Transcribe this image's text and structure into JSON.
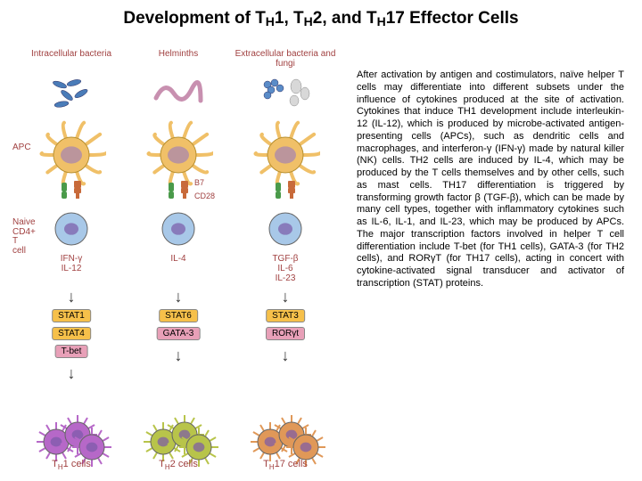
{
  "title_html": "Development of T<sub>H</sub>1, T<sub>H</sub>2, and T<sub>H</sub>17 Effector Cells",
  "description": "After activation by antigen and costimulators, naïve helper T cells may differentiate into different subsets under the influence of cytokines produced at the site of activation. Cytokines that induce TH1 development include interleukin-12 (IL-12), which is produced by microbe-activated antigen-presenting cells (APCs), such as dendritic cells and macrophages, and interferon-γ (IFN-γ) made by natural killer (NK) cells. TH2 cells are induced by IL-4, which may be produced by the T cells themselves and by other cells, such as mast cells. TH17 differentiation is triggered by transforming growth factor β (TGF-β), which can be made by many cell types, together with inflammatory cytokines such as IL-6, IL-1, and IL-23, which may be produced by APCs. The major transcription factors involved in helper T cell differentiation include T-bet (for TH1 cells), GATA-3 (for TH2 cells), and RORγT (for TH17 cells), acting in concert with cytokine-activated signal transducer and activator of transcription (STAT) proteins.",
  "labels": {
    "apc": "APC",
    "naive": "Naive CD4+ T cell",
    "b7": "B7",
    "cd28": "CD28"
  },
  "columns": [
    {
      "pathogen": "Intracellular bacteria",
      "pathogen_color": "#4a7cb8",
      "cytokines": "IFN-γ, IL-12",
      "tfs": [
        {
          "name": "STAT1",
          "bg": "#f6c04a"
        },
        {
          "name": "STAT4",
          "bg": "#f6c04a"
        },
        {
          "name": "T-bet",
          "bg": "#e8a0b8"
        }
      ],
      "effector_color": "#b668c8",
      "effector_label": "TH1 cells"
    },
    {
      "pathogen": "Helminths",
      "pathogen_color": "#c890b0",
      "cytokines": "IL-4",
      "tfs": [
        {
          "name": "STAT6",
          "bg": "#f6c04a"
        },
        {
          "name": "GATA-3",
          "bg": "#e8a0b8"
        }
      ],
      "effector_color": "#b8c44a",
      "effector_label": "TH2 cells"
    },
    {
      "pathogen": "Extracellular bacteria and fungi",
      "pathogen_color": "#5a8cc8",
      "cytokines": "TGF-β, IL-6, IL-23",
      "tfs": [
        {
          "name": "STAT3",
          "bg": "#f6c04a"
        },
        {
          "name": "RORγt",
          "bg": "#e8a0b8"
        }
      ],
      "effector_color": "#e09858",
      "effector_label": "TH17 cells"
    }
  ],
  "style": {
    "apc_color": "#f0c068",
    "naive_color": "#a8c8e8",
    "label_color": "#a04040",
    "arrow_color": "#333333"
  }
}
